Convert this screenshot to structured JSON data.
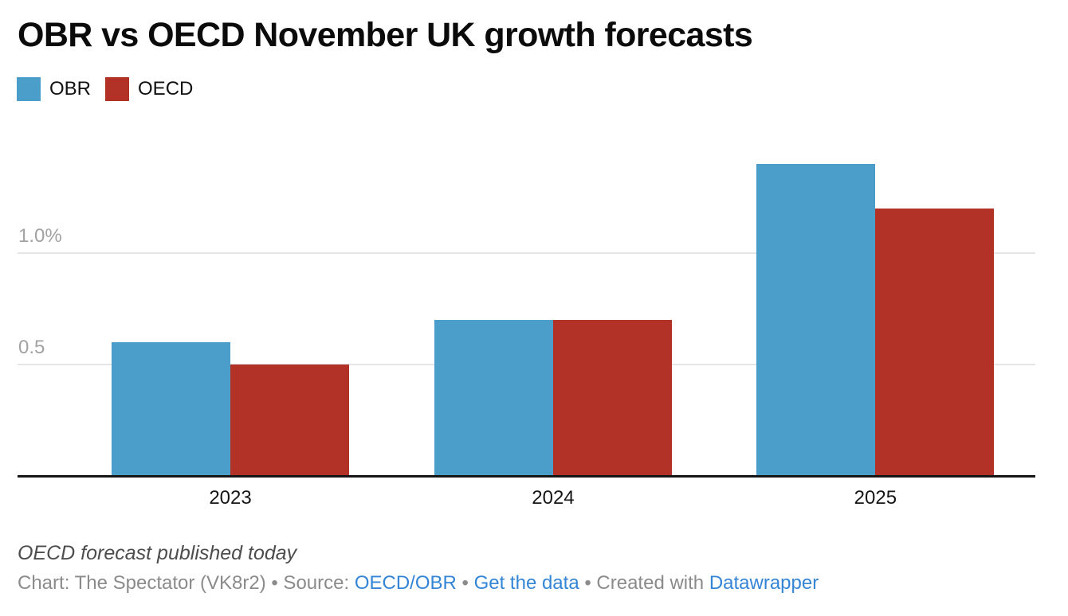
{
  "header": {
    "title": "OBR vs OECD November UK growth forecasts"
  },
  "chart_data": {
    "type": "bar",
    "title": "OBR vs OECD November UK growth forecasts",
    "categories": [
      "2023",
      "2024",
      "2025"
    ],
    "series": [
      {
        "name": "OBR",
        "color": "#4b9dca",
        "values": [
          0.6,
          0.7,
          1.4
        ]
      },
      {
        "name": "OECD",
        "color": "#b23227",
        "values": [
          0.5,
          0.7,
          1.2
        ]
      }
    ],
    "xlabel": "",
    "ylabel": "",
    "unit": "%",
    "y_ticks": [
      {
        "value": 0.5,
        "label": "0.5"
      },
      {
        "value": 1.0,
        "label": "1.0%"
      }
    ],
    "ylim": [
      0,
      1.47
    ],
    "grid": "horizontal",
    "legend_position": "top-left"
  },
  "footer": {
    "note": "OECD forecast published today",
    "byline_segments": [
      {
        "text": "Chart: The Spectator (VK8r2) • Source: ",
        "link": false
      },
      {
        "text": "OECD/OBR",
        "link": true,
        "name": "source-link"
      },
      {
        "text": " • ",
        "link": false
      },
      {
        "text": "Get the data",
        "link": true,
        "name": "get-the-data-link"
      },
      {
        "text": " • Created with ",
        "link": false
      },
      {
        "text": "Datawrapper",
        "link": true,
        "name": "datawrapper-link"
      }
    ],
    "link_color": "#3585d6"
  }
}
